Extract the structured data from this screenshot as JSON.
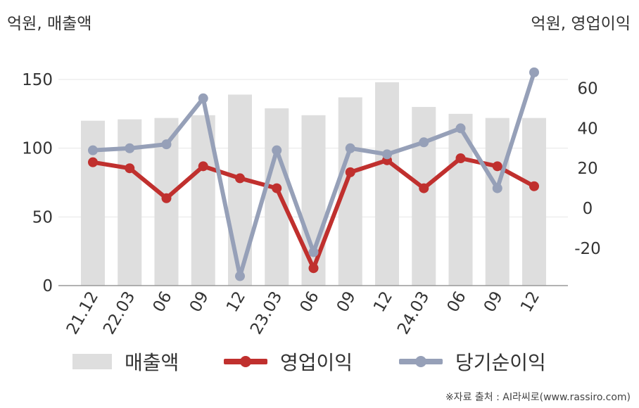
{
  "units": {
    "left": "억원, 매출액",
    "right": "억원, 영업이익"
  },
  "legend": {
    "sales": "매출액",
    "op": "영업이익",
    "net": "당기순이익"
  },
  "source": "※자료 출처 : AI라씨로(www.rassiro.com)",
  "colors": {
    "bar": "#dedede",
    "op": "#c0302e",
    "net": "#96a0b8",
    "grid": "#e6e6e6",
    "axis": "#999999",
    "text": "#333333"
  },
  "chart_data": {
    "type": "bar",
    "categories": [
      "21.12",
      "22.03",
      "06",
      "09",
      "12",
      "23.03",
      "06",
      "09",
      "12",
      "24.03",
      "06",
      "09",
      "12"
    ],
    "series": [
      {
        "name": "매출액",
        "type": "bar",
        "axis": "left",
        "values": [
          120,
          121,
          122,
          124,
          139,
          129,
          124,
          137,
          148,
          130,
          125,
          122,
          122
        ]
      },
      {
        "name": "영업이익",
        "type": "line",
        "axis": "right",
        "values": [
          23,
          20,
          5,
          21,
          15,
          10,
          -30,
          18,
          24,
          10,
          25,
          21,
          11
        ]
      },
      {
        "name": "당기순이익",
        "type": "line",
        "axis": "right",
        "values": [
          29,
          30,
          32,
          55,
          -34,
          29,
          -22,
          30,
          27,
          33,
          40,
          10,
          68
        ]
      }
    ],
    "yleft": {
      "min": 0,
      "max": 150,
      "ticks": [
        0,
        50,
        100,
        150
      ]
    },
    "yright": {
      "ticks": [
        -20,
        0,
        20,
        40,
        60
      ]
    }
  }
}
